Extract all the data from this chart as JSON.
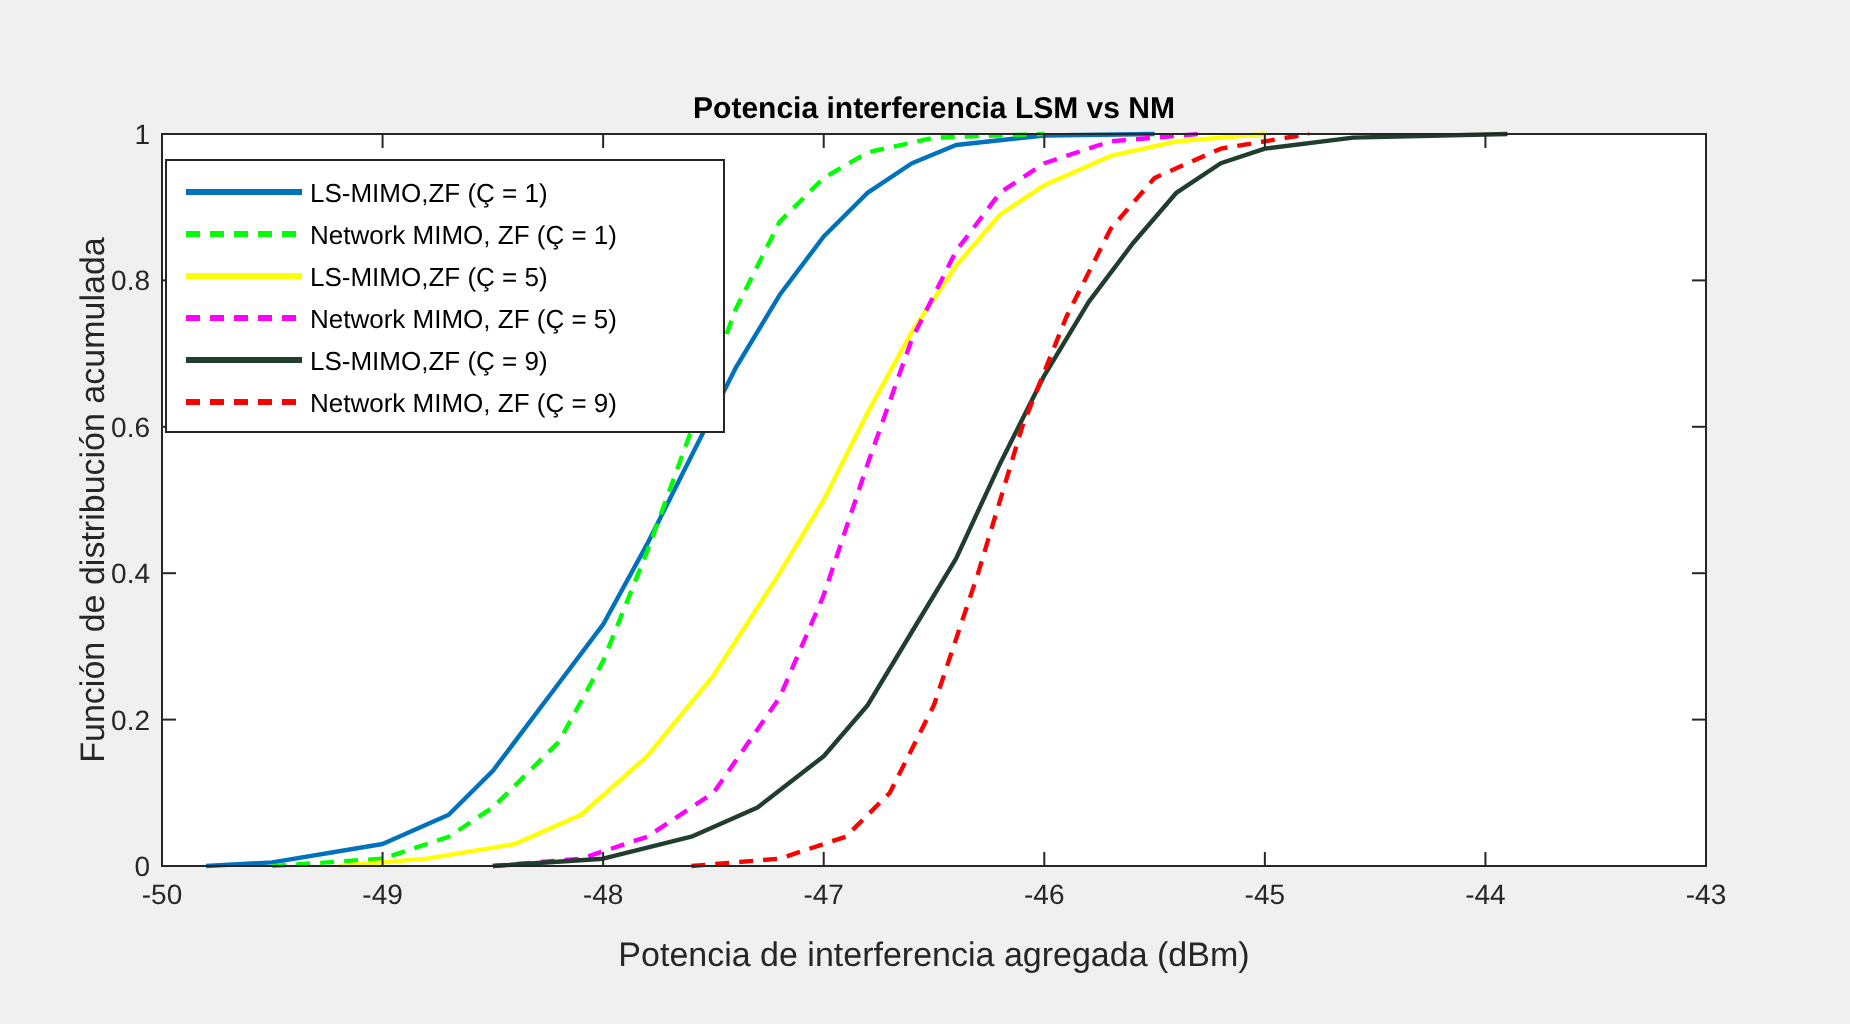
{
  "chart_data": {
    "type": "line",
    "title": "Potencia interferencia LSM vs NM",
    "xlabel": "Potencia de interferencia agregada (dBm)",
    "ylabel": "Función de distribución acumulada",
    "xlim": [
      -50,
      -43
    ],
    "xticks": [
      -50,
      -49,
      -48,
      -47,
      -46,
      -45,
      -44,
      -43
    ],
    "ylim": [
      0,
      1
    ],
    "yticks": [
      0,
      0.2,
      0.4,
      0.6,
      0.8,
      1
    ],
    "grid": false,
    "legend": "top left",
    "series": [
      {
        "name": "LS-MIMO,ZF (Ç = 1)",
        "color": "#0072bd",
        "line_style": "solid",
        "x": [
          -49.8,
          -49.5,
          -49,
          -48.7,
          -48.5,
          -48.2,
          -48,
          -47.8,
          -47.6,
          -47.4,
          -47.2,
          -47,
          -46.8,
          -46.6,
          -46.4,
          -46,
          -45.5
        ],
        "values": [
          0,
          0.005,
          0.03,
          0.07,
          0.13,
          0.25,
          0.33,
          0.44,
          null,
          0.68,
          0.78,
          0.86,
          0.92,
          0.96,
          0.985,
          0.998,
          1
        ]
      },
      {
        "name": "Network MIMO, ZF (Ç = 1)",
        "color": "#00ff00",
        "line_style": "dashed",
        "x": [
          -49.5,
          -49,
          -48.7,
          -48.5,
          -48.2,
          -48,
          -47.8,
          -47.6,
          -47.4,
          -47.2,
          -47,
          -46.8,
          -46.5,
          -46
        ],
        "values": [
          0,
          0.01,
          0.04,
          0.08,
          0.17,
          0.28,
          0.43,
          null,
          0.76,
          0.88,
          0.94,
          0.975,
          0.995,
          1
        ]
      },
      {
        "name": "LS-MIMO,ZF (Ç = 5)",
        "color": "#ffff00",
        "line_style": "solid",
        "x": [
          -49.2,
          -48.8,
          -48.4,
          -48.1,
          -47.8,
          -47.5,
          -47.2,
          -47,
          -46.8,
          -46.6,
          -46.4,
          -46.2,
          -46,
          -45.7,
          -45.4,
          -45
        ],
        "values": [
          0,
          0.01,
          0.03,
          0.07,
          0.15,
          0.26,
          0.4,
          0.5,
          0.62,
          0.73,
          0.82,
          0.89,
          0.93,
          0.97,
          0.99,
          1
        ]
      },
      {
        "name": "Network MIMO, ZF (Ç = 5)",
        "color": "#ff00ff",
        "line_style": "dashed",
        "x": [
          -48.5,
          -48.1,
          -47.8,
          -47.5,
          -47.2,
          -47,
          -46.8,
          -46.6,
          -46.4,
          -46.2,
          -46,
          -45.7,
          -45.3
        ],
        "values": [
          0,
          0.01,
          0.04,
          0.1,
          0.23,
          0.37,
          0.55,
          0.72,
          0.84,
          0.92,
          0.96,
          0.99,
          1
        ]
      },
      {
        "name": "LS-MIMO,ZF (Ç = 9)",
        "color": "#203d2d",
        "line_style": "solid",
        "x": [
          -48.5,
          -48,
          -47.6,
          -47.3,
          -47,
          -46.8,
          -46.6,
          -46.4,
          -46.2,
          -46,
          -45.8,
          -45.6,
          -45.4,
          -45.2,
          -45,
          -44.6,
          -43.9
        ],
        "values": [
          0,
          0.01,
          0.04,
          0.08,
          0.15,
          0.22,
          0.32,
          0.42,
          0.55,
          0.67,
          0.77,
          0.85,
          0.92,
          0.96,
          0.98,
          0.995,
          1
        ]
      },
      {
        "name": "Network MIMO, ZF (Ç = 9)",
        "color": "#ff0000",
        "line_style": "dashed",
        "x": [
          -47.6,
          -47.2,
          -46.9,
          -46.7,
          -46.5,
          -46.3,
          -46.1,
          -45.9,
          -45.7,
          -45.5,
          -45.2,
          -44.8
        ],
        "values": [
          0,
          0.01,
          0.04,
          0.1,
          0.22,
          0.4,
          0.6,
          0.75,
          0.87,
          0.94,
          0.98,
          1
        ]
      }
    ]
  }
}
